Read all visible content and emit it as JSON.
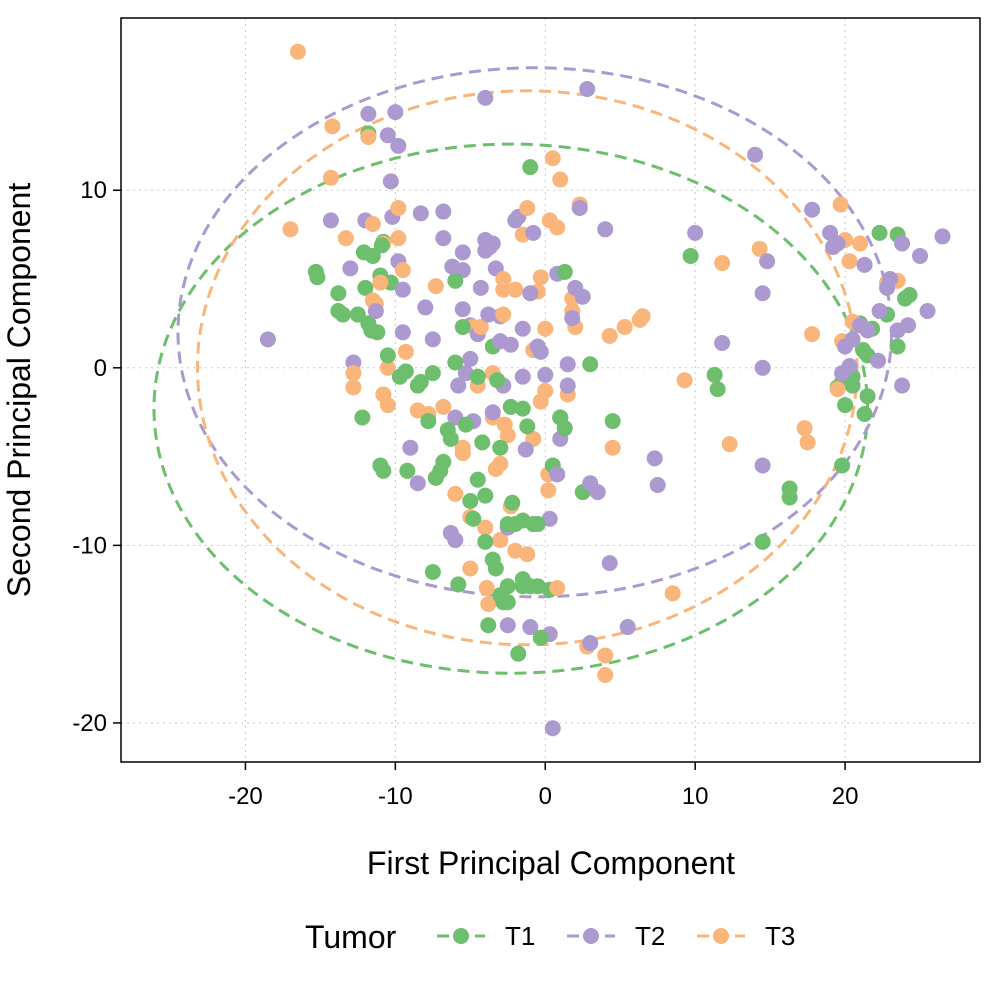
{
  "chart_data": {
    "type": "scatter",
    "xlabel": "First Principal Component",
    "ylabel": "Second Principal Component",
    "xlim": [
      -28.3,
      29.0
    ],
    "ylim": [
      -22.2,
      19.7
    ],
    "x_ticks": [
      -20,
      -10,
      0,
      10,
      20
    ],
    "y_ticks": [
      -20,
      -10,
      0,
      10
    ],
    "grid": true,
    "legend": {
      "title": "Tumor",
      "placement": "bottom"
    },
    "ellipses": "dashed confidence ellipse per series",
    "series": [
      {
        "name": "T1",
        "color": "#6DBE6D",
        "ellipse": {
          "cx": -2.3,
          "cy": -2.3,
          "rx": 23.8,
          "ry": 14.9
        },
        "points": [
          [
            -11.8,
            13.2
          ],
          [
            -11.5,
            6.3
          ],
          [
            -11.0,
            5.2
          ],
          [
            -10.8,
            7.1
          ],
          [
            -10.3,
            4.8
          ],
          [
            -12.0,
            4.5
          ],
          [
            -12.5,
            3.0
          ],
          [
            -11.8,
            2.5
          ],
          [
            -11.2,
            2.0
          ],
          [
            -12.2,
            -2.8
          ],
          [
            -11.0,
            -5.5
          ],
          [
            -10.8,
            -5.8
          ],
          [
            -15.3,
            5.4
          ],
          [
            -15.2,
            5.1
          ],
          [
            -13.8,
            4.2
          ],
          [
            -13.5,
            3.0
          ],
          [
            -13.8,
            3.2
          ],
          [
            -10.5,
            0.7
          ],
          [
            -9.3,
            -0.2
          ],
          [
            -9.2,
            -5.8
          ],
          [
            -8.5,
            -1.0
          ],
          [
            -8.3,
            -0.8
          ],
          [
            -7.8,
            -3.0
          ],
          [
            -7.5,
            -0.3
          ],
          [
            -7.3,
            -6.2
          ],
          [
            -7.0,
            -5.8
          ],
          [
            -6.8,
            -5.3
          ],
          [
            -6.5,
            -3.5
          ],
          [
            -6.3,
            -4.0
          ],
          [
            -6.0,
            0.3
          ],
          [
            -6.0,
            4.9
          ],
          [
            -5.5,
            2.3
          ],
          [
            -5.3,
            -3.2
          ],
          [
            -5.0,
            -7.5
          ],
          [
            -4.8,
            -8.5
          ],
          [
            -4.5,
            -6.3
          ],
          [
            -4.5,
            -0.5
          ],
          [
            -4.2,
            -4.2
          ],
          [
            -4.0,
            -7.2
          ],
          [
            -4.0,
            -9.8
          ],
          [
            -3.8,
            -14.5
          ],
          [
            -3.5,
            1.2
          ],
          [
            -3.5,
            -10.8
          ],
          [
            -3.3,
            -11.3
          ],
          [
            -3.0,
            -4.5
          ],
          [
            -3.0,
            -12.8
          ],
          [
            -2.8,
            -13.2
          ],
          [
            -2.5,
            -13.2
          ],
          [
            -2.5,
            -12.3
          ],
          [
            -2.5,
            -8.8
          ],
          [
            -2.2,
            -7.6
          ],
          [
            -2.0,
            -8.8
          ],
          [
            -1.8,
            -16.1
          ],
          [
            -1.5,
            -12.3
          ],
          [
            -1.5,
            -11.9
          ],
          [
            -1.5,
            -8.6
          ],
          [
            -1.5,
            -2.3
          ],
          [
            -1.2,
            -3.3
          ],
          [
            -1.0,
            -12.3
          ],
          [
            -1.0,
            11.3
          ],
          [
            -0.8,
            -8.8
          ],
          [
            -0.5,
            -8.8
          ],
          [
            -0.5,
            -12.3
          ],
          [
            -0.3,
            -15.2
          ],
          [
            0.3,
            -12.5
          ],
          [
            0.5,
            -5.5
          ],
          [
            1.0,
            -2.8
          ],
          [
            1.3,
            -3.4
          ],
          [
            1.3,
            5.4
          ],
          [
            2.5,
            -7.0
          ],
          [
            3.0,
            0.2
          ],
          [
            4.5,
            -3.0
          ],
          [
            9.7,
            6.3
          ],
          [
            11.3,
            -0.4
          ],
          [
            11.5,
            -1.2
          ],
          [
            14.5,
            -9.8
          ],
          [
            16.3,
            -6.8
          ],
          [
            16.3,
            -7.3
          ],
          [
            19.5,
            -1.1
          ],
          [
            19.8,
            -0.8
          ],
          [
            20.0,
            -2.1
          ],
          [
            19.8,
            -5.5
          ],
          [
            20.5,
            -1.0
          ],
          [
            20.5,
            -0.5
          ],
          [
            21.0,
            2.5
          ],
          [
            21.2,
            1.0
          ],
          [
            21.3,
            -2.6
          ],
          [
            21.5,
            -1.6
          ],
          [
            21.5,
            0.7
          ],
          [
            21.8,
            2.2
          ],
          [
            22.3,
            7.6
          ],
          [
            22.8,
            3.0
          ],
          [
            23.5,
            1.2
          ],
          [
            23.5,
            7.5
          ],
          [
            24.0,
            3.9
          ],
          [
            24.3,
            4.1
          ],
          [
            -5.8,
            -12.2
          ],
          [
            -7.5,
            -11.5
          ],
          [
            -3.2,
            -0.7
          ],
          [
            -2.3,
            -2.2
          ],
          [
            -9.7,
            -0.5
          ],
          [
            -11.6,
            2.1
          ],
          [
            -12.1,
            6.5
          ],
          [
            -10.9,
            6.9
          ]
        ]
      },
      {
        "name": "T2",
        "color": "#AB99CF",
        "ellipse": {
          "cx": -0.7,
          "cy": 2.0,
          "rx": 23.8,
          "ry": 14.9
        },
        "points": [
          [
            -18.5,
            1.6
          ],
          [
            -14.3,
            8.3
          ],
          [
            -12.8,
            0.3
          ],
          [
            -12.0,
            8.3
          ],
          [
            -11.8,
            14.3
          ],
          [
            -10.5,
            13.1
          ],
          [
            -10.3,
            10.5
          ],
          [
            -10.2,
            8.5
          ],
          [
            -10.0,
            14.4
          ],
          [
            -9.8,
            12.5
          ],
          [
            -9.8,
            6.0
          ],
          [
            -9.5,
            4.4
          ],
          [
            -9.5,
            2.0
          ],
          [
            -9.0,
            -4.5
          ],
          [
            -8.5,
            -6.5
          ],
          [
            -8.3,
            8.7
          ],
          [
            -8.0,
            3.4
          ],
          [
            -7.5,
            1.6
          ],
          [
            -6.8,
            8.8
          ],
          [
            -6.8,
            7.3
          ],
          [
            -6.3,
            -9.3
          ],
          [
            -6.0,
            -9.7
          ],
          [
            -6.0,
            -2.8
          ],
          [
            -5.8,
            -1.0
          ],
          [
            -5.5,
            6.5
          ],
          [
            -5.5,
            5.5
          ],
          [
            -5.5,
            3.3
          ],
          [
            -5.3,
            -0.3
          ],
          [
            -5.0,
            2.4
          ],
          [
            -5.0,
            0.5
          ],
          [
            -4.8,
            -3.0
          ],
          [
            -4.5,
            1.9
          ],
          [
            -4.3,
            4.5
          ],
          [
            -4.0,
            7.2
          ],
          [
            -4.0,
            15.2
          ],
          [
            -4.0,
            6.6
          ],
          [
            -3.8,
            3.0
          ],
          [
            -3.5,
            -2.5
          ],
          [
            -3.5,
            7.0
          ],
          [
            -3.3,
            5.6
          ],
          [
            -3.0,
            2.9
          ],
          [
            -3.0,
            1.5
          ],
          [
            -2.8,
            -1.0
          ],
          [
            -2.5,
            -14.5
          ],
          [
            -2.5,
            -9.0
          ],
          [
            -2.3,
            1.3
          ],
          [
            -2.0,
            8.3
          ],
          [
            -1.8,
            8.5
          ],
          [
            -1.5,
            2.2
          ],
          [
            -1.5,
            -0.5
          ],
          [
            -1.3,
            -4.6
          ],
          [
            -1.0,
            4.2
          ],
          [
            -1.0,
            -14.6
          ],
          [
            -0.8,
            7.6
          ],
          [
            -0.5,
            1.2
          ],
          [
            -0.3,
            0.9
          ],
          [
            0.0,
            -0.4
          ],
          [
            0.3,
            -15.0
          ],
          [
            0.3,
            -8.5
          ],
          [
            0.5,
            -20.3
          ],
          [
            0.8,
            5.3
          ],
          [
            1.0,
            -4.0
          ],
          [
            1.0,
            -2.8
          ],
          [
            1.5,
            -1.0
          ],
          [
            1.5,
            0.2
          ],
          [
            1.8,
            2.8
          ],
          [
            2.0,
            4.5
          ],
          [
            2.3,
            9.0
          ],
          [
            2.5,
            4.0
          ],
          [
            2.8,
            15.7
          ],
          [
            3.0,
            -15.5
          ],
          [
            3.0,
            -6.5
          ],
          [
            3.5,
            -7.0
          ],
          [
            4.0,
            7.8
          ],
          [
            4.3,
            -11.0
          ],
          [
            5.5,
            -14.6
          ],
          [
            7.3,
            -5.1
          ],
          [
            7.5,
            -6.6
          ],
          [
            10.0,
            7.6
          ],
          [
            11.8,
            1.4
          ],
          [
            14.0,
            12.0
          ],
          [
            14.5,
            0.0
          ],
          [
            14.5,
            4.2
          ],
          [
            14.5,
            -5.5
          ],
          [
            14.8,
            6.0
          ],
          [
            17.8,
            8.9
          ],
          [
            19.0,
            7.6
          ],
          [
            19.2,
            6.8
          ],
          [
            19.5,
            7.0
          ],
          [
            19.8,
            -0.3
          ],
          [
            20.0,
            1.2
          ],
          [
            20.3,
            0.1
          ],
          [
            20.5,
            1.6
          ],
          [
            21.0,
            2.4
          ],
          [
            21.3,
            5.8
          ],
          [
            21.5,
            2.1
          ],
          [
            22.2,
            0.4
          ],
          [
            22.3,
            3.2
          ],
          [
            22.8,
            4.5
          ],
          [
            23.0,
            5.0
          ],
          [
            23.5,
            2.1
          ],
          [
            23.8,
            -1.0
          ],
          [
            23.8,
            7.0
          ],
          [
            24.2,
            2.4
          ],
          [
            25.0,
            6.3
          ],
          [
            25.5,
            3.2
          ],
          [
            26.5,
            7.4
          ],
          [
            -13.0,
            5.6
          ],
          [
            -11.3,
            3.2
          ],
          [
            -6.2,
            5.7
          ],
          [
            -3.7,
            6.8
          ],
          [
            0.8,
            -6.0
          ]
        ]
      },
      {
        "name": "T3",
        "color": "#F9B57A",
        "ellipse": {
          "cx": -1.2,
          "cy": 0.0,
          "rx": 22.0,
          "ry": 15.6
        },
        "points": [
          [
            -16.5,
            17.8
          ],
          [
            -17.0,
            7.8
          ],
          [
            -14.2,
            13.6
          ],
          [
            -14.3,
            10.7
          ],
          [
            -13.3,
            7.3
          ],
          [
            -12.8,
            -0.3
          ],
          [
            -12.8,
            -1.1
          ],
          [
            -11.8,
            13.0
          ],
          [
            -11.5,
            8.1
          ],
          [
            -11.5,
            3.8
          ],
          [
            -11.3,
            3.6
          ],
          [
            -11.0,
            4.8
          ],
          [
            -10.8,
            7.0
          ],
          [
            -10.8,
            -1.5
          ],
          [
            -10.5,
            0.0
          ],
          [
            -10.5,
            -2.1
          ],
          [
            -9.8,
            9.0
          ],
          [
            -9.8,
            7.3
          ],
          [
            -9.5,
            5.5
          ],
          [
            -9.3,
            0.9
          ],
          [
            -8.5,
            -2.4
          ],
          [
            -7.8,
            -2.6
          ],
          [
            -7.3,
            4.6
          ],
          [
            -6.8,
            -2.2
          ],
          [
            -6.0,
            -7.1
          ],
          [
            -5.5,
            -4.5
          ],
          [
            -5.5,
            -4.8
          ],
          [
            -5.0,
            -8.4
          ],
          [
            -5.0,
            -11.3
          ],
          [
            -4.8,
            2.3
          ],
          [
            -4.5,
            -1.0
          ],
          [
            -4.3,
            2.3
          ],
          [
            -4.0,
            -9.0
          ],
          [
            -3.8,
            -13.3
          ],
          [
            -3.5,
            -0.3
          ],
          [
            -3.5,
            -2.8
          ],
          [
            -3.3,
            -5.7
          ],
          [
            -3.0,
            -5.4
          ],
          [
            -3.0,
            -9.7
          ],
          [
            -2.8,
            4.4
          ],
          [
            -2.8,
            5.0
          ],
          [
            -2.8,
            3.0
          ],
          [
            -2.5,
            -3.8
          ],
          [
            -2.3,
            -7.8
          ],
          [
            -2.0,
            -10.3
          ],
          [
            -2.0,
            4.4
          ],
          [
            -1.5,
            7.5
          ],
          [
            -1.2,
            9.0
          ],
          [
            -0.8,
            1.0
          ],
          [
            -0.8,
            -4.0
          ],
          [
            -0.5,
            4.3
          ],
          [
            -0.3,
            -1.9
          ],
          [
            -0.3,
            5.1
          ],
          [
            0.0,
            2.2
          ],
          [
            0.0,
            -1.3
          ],
          [
            0.2,
            -6.0
          ],
          [
            0.2,
            -6.9
          ],
          [
            0.3,
            8.3
          ],
          [
            0.5,
            11.8
          ],
          [
            0.8,
            7.9
          ],
          [
            1.0,
            10.6
          ],
          [
            1.5,
            -1.5
          ],
          [
            1.8,
            3.2
          ],
          [
            1.8,
            3.9
          ],
          [
            2.0,
            2.3
          ],
          [
            2.3,
            9.2
          ],
          [
            2.8,
            -15.7
          ],
          [
            4.0,
            -16.2
          ],
          [
            4.0,
            -17.3
          ],
          [
            4.3,
            1.8
          ],
          [
            4.5,
            -4.5
          ],
          [
            5.3,
            2.3
          ],
          [
            6.3,
            2.7
          ],
          [
            6.5,
            2.9
          ],
          [
            8.5,
            -12.7
          ],
          [
            9.3,
            -0.7
          ],
          [
            11.8,
            5.9
          ],
          [
            12.3,
            -4.3
          ],
          [
            14.3,
            6.7
          ],
          [
            17.3,
            -3.4
          ],
          [
            17.5,
            -4.2
          ],
          [
            17.8,
            1.9
          ],
          [
            19.5,
            -1.2
          ],
          [
            19.8,
            1.5
          ],
          [
            19.7,
            9.2
          ],
          [
            20.0,
            7.2
          ],
          [
            20.3,
            6.0
          ],
          [
            20.5,
            2.6
          ],
          [
            21.0,
            7.0
          ],
          [
            22.8,
            4.8
          ],
          [
            23.5,
            4.9
          ],
          [
            -3.9,
            -12.4
          ],
          [
            -1.2,
            -10.5
          ],
          [
            0.8,
            -12.4
          ],
          [
            -2.7,
            -3.2
          ]
        ]
      }
    ]
  }
}
